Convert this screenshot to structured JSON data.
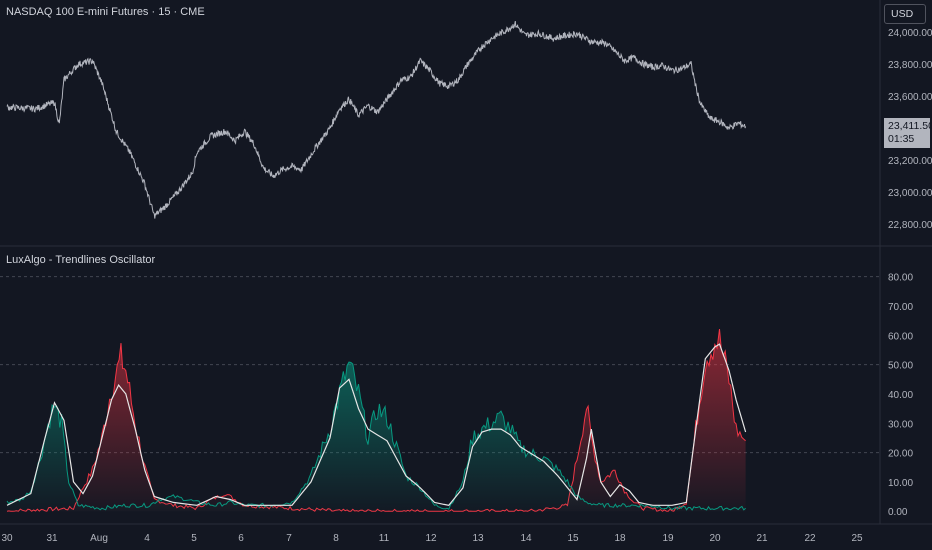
{
  "header": {
    "symbol_title": "NASDAQ 100 E-mini Futures · 15 · CME",
    "currency": "USD",
    "indicator_title": "LuxAlgo - Trendlines Oscillator"
  },
  "price_tag": {
    "price": "23,411.50",
    "countdown": "01:35"
  },
  "colors": {
    "background": "#131722",
    "price_line": "#b2b5be",
    "bullish": "#089981",
    "bearish": "#f23645",
    "signal": "#e6e6e6",
    "grid": "#434651"
  },
  "chart_data": [
    {
      "type": "line",
      "name": "price",
      "x_ticks": [
        "30",
        "31",
        "Aug",
        "4",
        "5",
        "6",
        "7",
        "8",
        "11",
        "12",
        "13",
        "14",
        "15",
        "18",
        "19",
        "20",
        "21",
        "22",
        "25"
      ],
      "y_ticks": [
        "24,000.00",
        "23,800.00",
        "23,600.00",
        "23,200.00",
        "23,000.00",
        "22,800.00"
      ],
      "ylim": [
        22700,
        24150
      ],
      "series": [
        {
          "values": [
            [
              0,
              23530
            ],
            [
              0.6,
              23520
            ],
            [
              1,
              23560
            ],
            [
              1.1,
              23420
            ],
            [
              1.2,
              23700
            ],
            [
              1.5,
              23800
            ],
            [
              1.8,
              23820
            ],
            [
              2,
              23680
            ],
            [
              2.3,
              23380
            ],
            [
              2.6,
              23240
            ],
            [
              2.9,
              23050
            ],
            [
              3,
              22950
            ],
            [
              3.1,
              22850
            ],
            [
              3.3,
              22900
            ],
            [
              3.6,
              23000
            ],
            [
              3.9,
              23120
            ],
            [
              4,
              23250
            ],
            [
              4.3,
              23350
            ],
            [
              4.6,
              23380
            ],
            [
              4.8,
              23320
            ],
            [
              5,
              23380
            ],
            [
              5.2,
              23300
            ],
            [
              5.4,
              23150
            ],
            [
              5.6,
              23100
            ],
            [
              5.8,
              23140
            ],
            [
              6,
              23160
            ],
            [
              6.2,
              23140
            ],
            [
              6.5,
              23280
            ],
            [
              6.8,
              23400
            ],
            [
              7,
              23520
            ],
            [
              7.2,
              23580
            ],
            [
              7.4,
              23480
            ],
            [
              7.6,
              23540
            ],
            [
              7.8,
              23500
            ],
            [
              8,
              23580
            ],
            [
              8.3,
              23700
            ],
            [
              8.5,
              23720
            ],
            [
              8.7,
              23820
            ],
            [
              8.9,
              23760
            ],
            [
              9.1,
              23680
            ],
            [
              9.3,
              23660
            ],
            [
              9.5,
              23700
            ],
            [
              9.7,
              23800
            ],
            [
              10,
              23910
            ],
            [
              10.2,
              23960
            ],
            [
              10.5,
              24010
            ],
            [
              10.7,
              24050
            ],
            [
              10.9,
              23980
            ],
            [
              11.2,
              23990
            ],
            [
              11.5,
              23960
            ],
            [
              11.8,
              23980
            ],
            [
              12,
              23990
            ],
            [
              12.3,
              23940
            ],
            [
              12.6,
              23930
            ],
            [
              12.8,
              23880
            ],
            [
              13,
              23820
            ],
            [
              13.2,
              23840
            ],
            [
              13.4,
              23800
            ],
            [
              13.6,
              23780
            ],
            [
              13.8,
              23790
            ],
            [
              14,
              23760
            ],
            [
              14.2,
              23770
            ],
            [
              14.4,
              23800
            ],
            [
              14.5,
              23660
            ],
            [
              14.6,
              23550
            ],
            [
              14.8,
              23460
            ],
            [
              15,
              23440
            ],
            [
              15.2,
              23400
            ],
            [
              15.4,
              23430
            ],
            [
              15.55,
              23410
            ]
          ]
        }
      ]
    },
    {
      "type": "area",
      "name": "oscillator",
      "x_ticks": [
        "30",
        "31",
        "Aug",
        "4",
        "5",
        "6",
        "7",
        "8",
        "11",
        "12",
        "13",
        "14",
        "15",
        "18",
        "19",
        "20",
        "21",
        "22",
        "25"
      ],
      "y_ticks": [
        "80.00",
        "70.00",
        "60.00",
        "50.00",
        "40.00",
        "30.00",
        "20.00",
        "10.00",
        "0.00"
      ],
      "ylim": [
        -3,
        85
      ],
      "dashed_levels": [
        80,
        50,
        20
      ],
      "series": [
        {
          "color": "#089981",
          "values": [
            [
              0,
              3
            ],
            [
              0.3,
              4
            ],
            [
              0.5,
              7
            ],
            [
              0.7,
              18
            ],
            [
              0.9,
              32
            ],
            [
              1,
              36
            ],
            [
              1.15,
              30
            ],
            [
              1.3,
              10
            ],
            [
              1.5,
              2
            ],
            [
              2,
              1
            ],
            [
              2.5,
              2
            ],
            [
              3,
              2
            ],
            [
              3.2,
              4
            ],
            [
              3.5,
              5
            ],
            [
              3.8,
              4
            ],
            [
              4,
              3
            ],
            [
              4.4,
              2
            ],
            [
              4.7,
              3
            ],
            [
              5,
              2
            ],
            [
              5.5,
              2
            ],
            [
              6,
              3
            ],
            [
              6.4,
              12
            ],
            [
              6.8,
              28
            ],
            [
              7,
              40
            ],
            [
              7.2,
              50
            ],
            [
              7.4,
              40
            ],
            [
              7.6,
              25
            ],
            [
              7.8,
              35
            ],
            [
              8,
              32
            ],
            [
              8.2,
              22
            ],
            [
              8.4,
              12
            ],
            [
              8.7,
              8
            ],
            [
              9,
              2
            ],
            [
              9.3,
              1
            ],
            [
              9.6,
              10
            ],
            [
              9.8,
              25
            ],
            [
              10,
              28
            ],
            [
              10.2,
              30
            ],
            [
              10.4,
              32
            ],
            [
              10.5,
              30
            ],
            [
              10.6,
              28
            ],
            [
              10.8,
              22
            ],
            [
              11,
              20
            ],
            [
              11.3,
              18
            ],
            [
              11.6,
              14
            ],
            [
              11.8,
              10
            ],
            [
              12,
              5
            ],
            [
              12.2,
              3
            ],
            [
              12.5,
              2
            ],
            [
              13,
              2
            ],
            [
              13.5,
              2
            ],
            [
              14,
              1
            ],
            [
              14.5,
              1
            ],
            [
              15,
              1
            ],
            [
              15.55,
              1
            ]
          ]
        },
        {
          "color": "#f23645",
          "values": [
            [
              0,
              0
            ],
            [
              1.4,
              1
            ],
            [
              1.6,
              8
            ],
            [
              1.8,
              14
            ],
            [
              2,
              25
            ],
            [
              2.2,
              42
            ],
            [
              2.4,
              52
            ],
            [
              2.5,
              48
            ],
            [
              2.7,
              30
            ],
            [
              2.9,
              15
            ],
            [
              3.1,
              4
            ],
            [
              3.5,
              2
            ],
            [
              4,
              1
            ],
            [
              4.3,
              4
            ],
            [
              4.6,
              6
            ],
            [
              5,
              2
            ],
            [
              6,
              1
            ],
            [
              7,
              0
            ],
            [
              8,
              0
            ],
            [
              9,
              0
            ],
            [
              10,
              0
            ],
            [
              11,
              0
            ],
            [
              11.5,
              1
            ],
            [
              11.8,
              2
            ],
            [
              12,
              18
            ],
            [
              12.2,
              36
            ],
            [
              12.3,
              25
            ],
            [
              12.5,
              10
            ],
            [
              12.8,
              14
            ],
            [
              13,
              7
            ],
            [
              13.2,
              3
            ],
            [
              13.4,
              1
            ],
            [
              14,
              0
            ],
            [
              14.3,
              3
            ],
            [
              14.5,
              28
            ],
            [
              14.7,
              52
            ],
            [
              14.9,
              58
            ],
            [
              15,
              58
            ],
            [
              15.2,
              45
            ],
            [
              15.35,
              28
            ],
            [
              15.55,
              24
            ]
          ]
        },
        {
          "color": "#e6e6e6",
          "values": [
            [
              0,
              2
            ],
            [
              0.5,
              6
            ],
            [
              0.8,
              25
            ],
            [
              1,
              37
            ],
            [
              1.2,
              31
            ],
            [
              1.4,
              10
            ],
            [
              1.6,
              6
            ],
            [
              1.8,
              12
            ],
            [
              2,
              25
            ],
            [
              2.2,
              38
            ],
            [
              2.35,
              43
            ],
            [
              2.5,
              40
            ],
            [
              2.7,
              28
            ],
            [
              2.9,
              14
            ],
            [
              3.1,
              5
            ],
            [
              3.5,
              3
            ],
            [
              4,
              2
            ],
            [
              4.4,
              5
            ],
            [
              4.7,
              4
            ],
            [
              5,
              2
            ],
            [
              5.5,
              2
            ],
            [
              6,
              2
            ],
            [
              6.4,
              10
            ],
            [
              6.8,
              25
            ],
            [
              7,
              42
            ],
            [
              7.2,
              45
            ],
            [
              7.4,
              35
            ],
            [
              7.6,
              28
            ],
            [
              7.8,
              26
            ],
            [
              8,
              24
            ],
            [
              8.2,
              18
            ],
            [
              8.4,
              12
            ],
            [
              8.7,
              8
            ],
            [
              9,
              3
            ],
            [
              9.3,
              2
            ],
            [
              9.6,
              8
            ],
            [
              9.8,
              22
            ],
            [
              10,
              27
            ],
            [
              10.2,
              28
            ],
            [
              10.4,
              28
            ],
            [
              10.6,
              26
            ],
            [
              10.8,
              22
            ],
            [
              11,
              20
            ],
            [
              11.3,
              17
            ],
            [
              11.6,
              12
            ],
            [
              11.8,
              8
            ],
            [
              12,
              4
            ],
            [
              12.2,
              18
            ],
            [
              12.3,
              28
            ],
            [
              12.5,
              10
            ],
            [
              12.7,
              5
            ],
            [
              12.9,
              9
            ],
            [
              13.1,
              7
            ],
            [
              13.3,
              3
            ],
            [
              13.6,
              2
            ],
            [
              14,
              2
            ],
            [
              14.3,
              3
            ],
            [
              14.5,
              28
            ],
            [
              14.7,
              52
            ],
            [
              14.9,
              56
            ],
            [
              15,
              57
            ],
            [
              15.2,
              48
            ],
            [
              15.35,
              38
            ],
            [
              15.55,
              27
            ]
          ]
        }
      ]
    }
  ]
}
